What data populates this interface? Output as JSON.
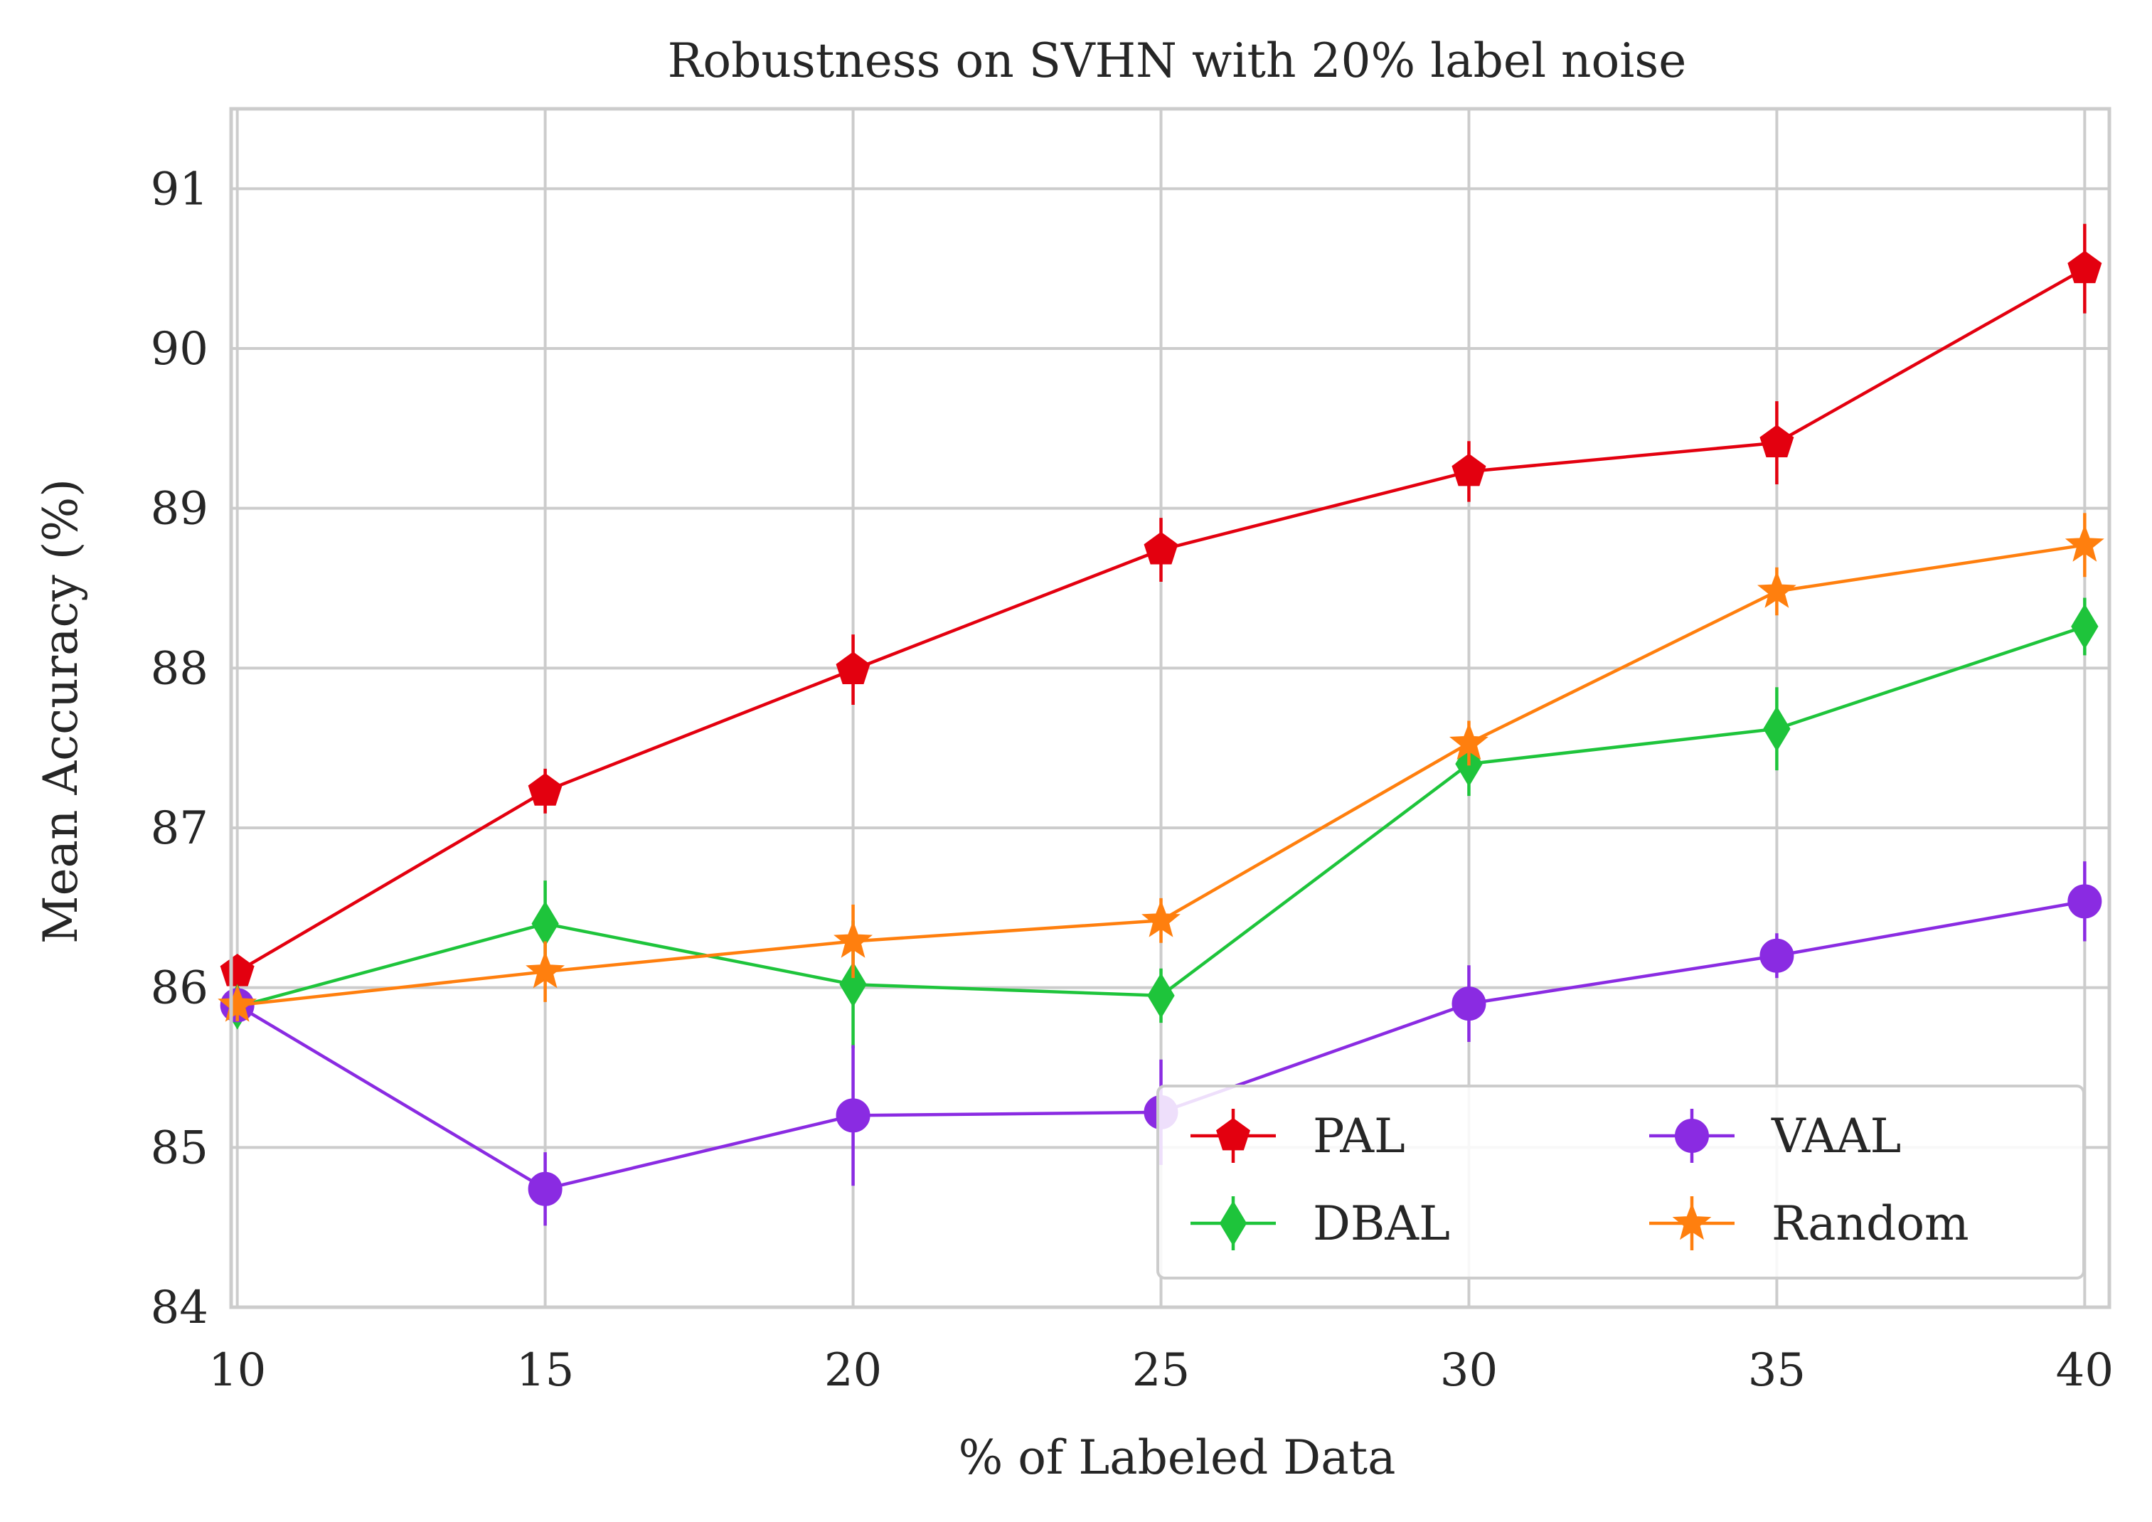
{
  "chart_data": {
    "type": "line",
    "title": "Robustness on SVHN with 20% label noise",
    "xlabel": "% of Labeled Data",
    "ylabel": "Mean Accuracy (%)",
    "x": [
      10,
      15,
      20,
      25,
      30,
      35,
      40
    ],
    "xlim": [
      9.9,
      40.4
    ],
    "ylim": [
      84,
      91.5
    ],
    "xticks": [
      "10",
      "15",
      "20",
      "25",
      "30",
      "35",
      "40"
    ],
    "yticks": [
      "84",
      "85",
      "86",
      "87",
      "88",
      "89",
      "90",
      "91"
    ],
    "grid": true,
    "legend_position": "lower-right",
    "series": [
      {
        "name": "PAL",
        "color": "#e3000f",
        "marker": "pentagon",
        "values": [
          86.1,
          87.23,
          87.99,
          88.74,
          89.23,
          89.41,
          90.5
        ],
        "errors": [
          0.1,
          0.14,
          0.22,
          0.2,
          0.19,
          0.26,
          0.28
        ]
      },
      {
        "name": "DBAL",
        "color": "#1ec43b",
        "marker": "diamond",
        "values": [
          85.88,
          86.4,
          86.02,
          85.95,
          87.4,
          87.62,
          88.26
        ],
        "errors": [
          0.1,
          0.27,
          0.4,
          0.17,
          0.2,
          0.26,
          0.18
        ]
      },
      {
        "name": "VAAL",
        "color": "#8a2be2",
        "marker": "circle",
        "values": [
          85.89,
          84.74,
          85.2,
          85.22,
          85.9,
          86.2,
          86.54
        ],
        "errors": [
          0.1,
          0.23,
          0.44,
          0.33,
          0.24,
          0.14,
          0.25
        ]
      },
      {
        "name": "Random",
        "color": "#ff7f0e",
        "marker": "star",
        "values": [
          85.89,
          86.1,
          86.29,
          86.42,
          87.53,
          88.48,
          88.77
        ],
        "errors": [
          0.1,
          0.19,
          0.23,
          0.14,
          0.14,
          0.15,
          0.2
        ]
      }
    ]
  }
}
